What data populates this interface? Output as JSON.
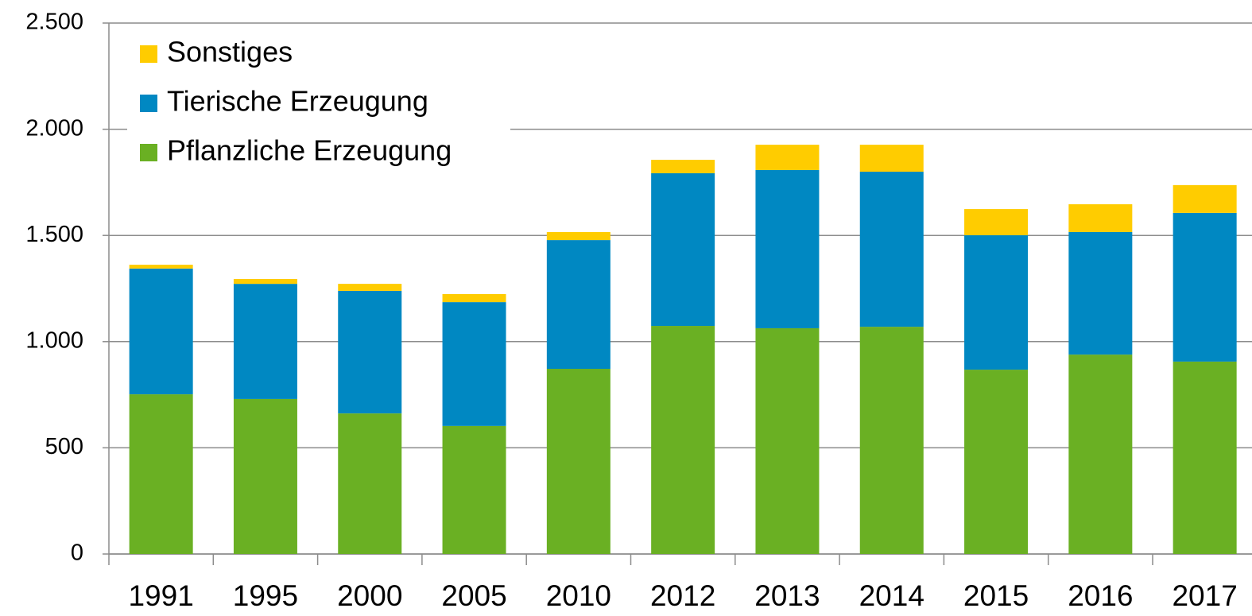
{
  "chart_data": {
    "type": "stacked_bar",
    "categories": [
      "1991",
      "1995",
      "2000",
      "2005",
      "2010",
      "2012",
      "2013",
      "2014",
      "2015",
      "2016",
      "2017"
    ],
    "series": [
      {
        "name": "Pflanzliche Erzeugung",
        "color": "#6ab023",
        "values": [
          752,
          730,
          662,
          603,
          872,
          1074,
          1063,
          1070,
          868,
          939,
          906
        ]
      },
      {
        "name": "Tierische Erzeugung",
        "color": "#0088c2",
        "values": [
          592,
          542,
          577,
          583,
          606,
          719,
          745,
          730,
          633,
          577,
          700
        ]
      },
      {
        "name": "Sonstiges",
        "color": "#ffcc00",
        "values": [
          18,
          23,
          33,
          38,
          38,
          63,
          119,
          127,
          123,
          131,
          131
        ]
      }
    ],
    "ylim": [
      0,
      2500
    ],
    "yticks": [
      0,
      500,
      {
        "value": 1000,
        "label": "1.000"
      },
      {
        "value": 1500,
        "label": "1.500"
      },
      {
        "value": 2000,
        "label": "2.000"
      },
      {
        "value": 2500,
        "label": "2.500"
      }
    ],
    "grid": true,
    "legend": "top-left"
  }
}
